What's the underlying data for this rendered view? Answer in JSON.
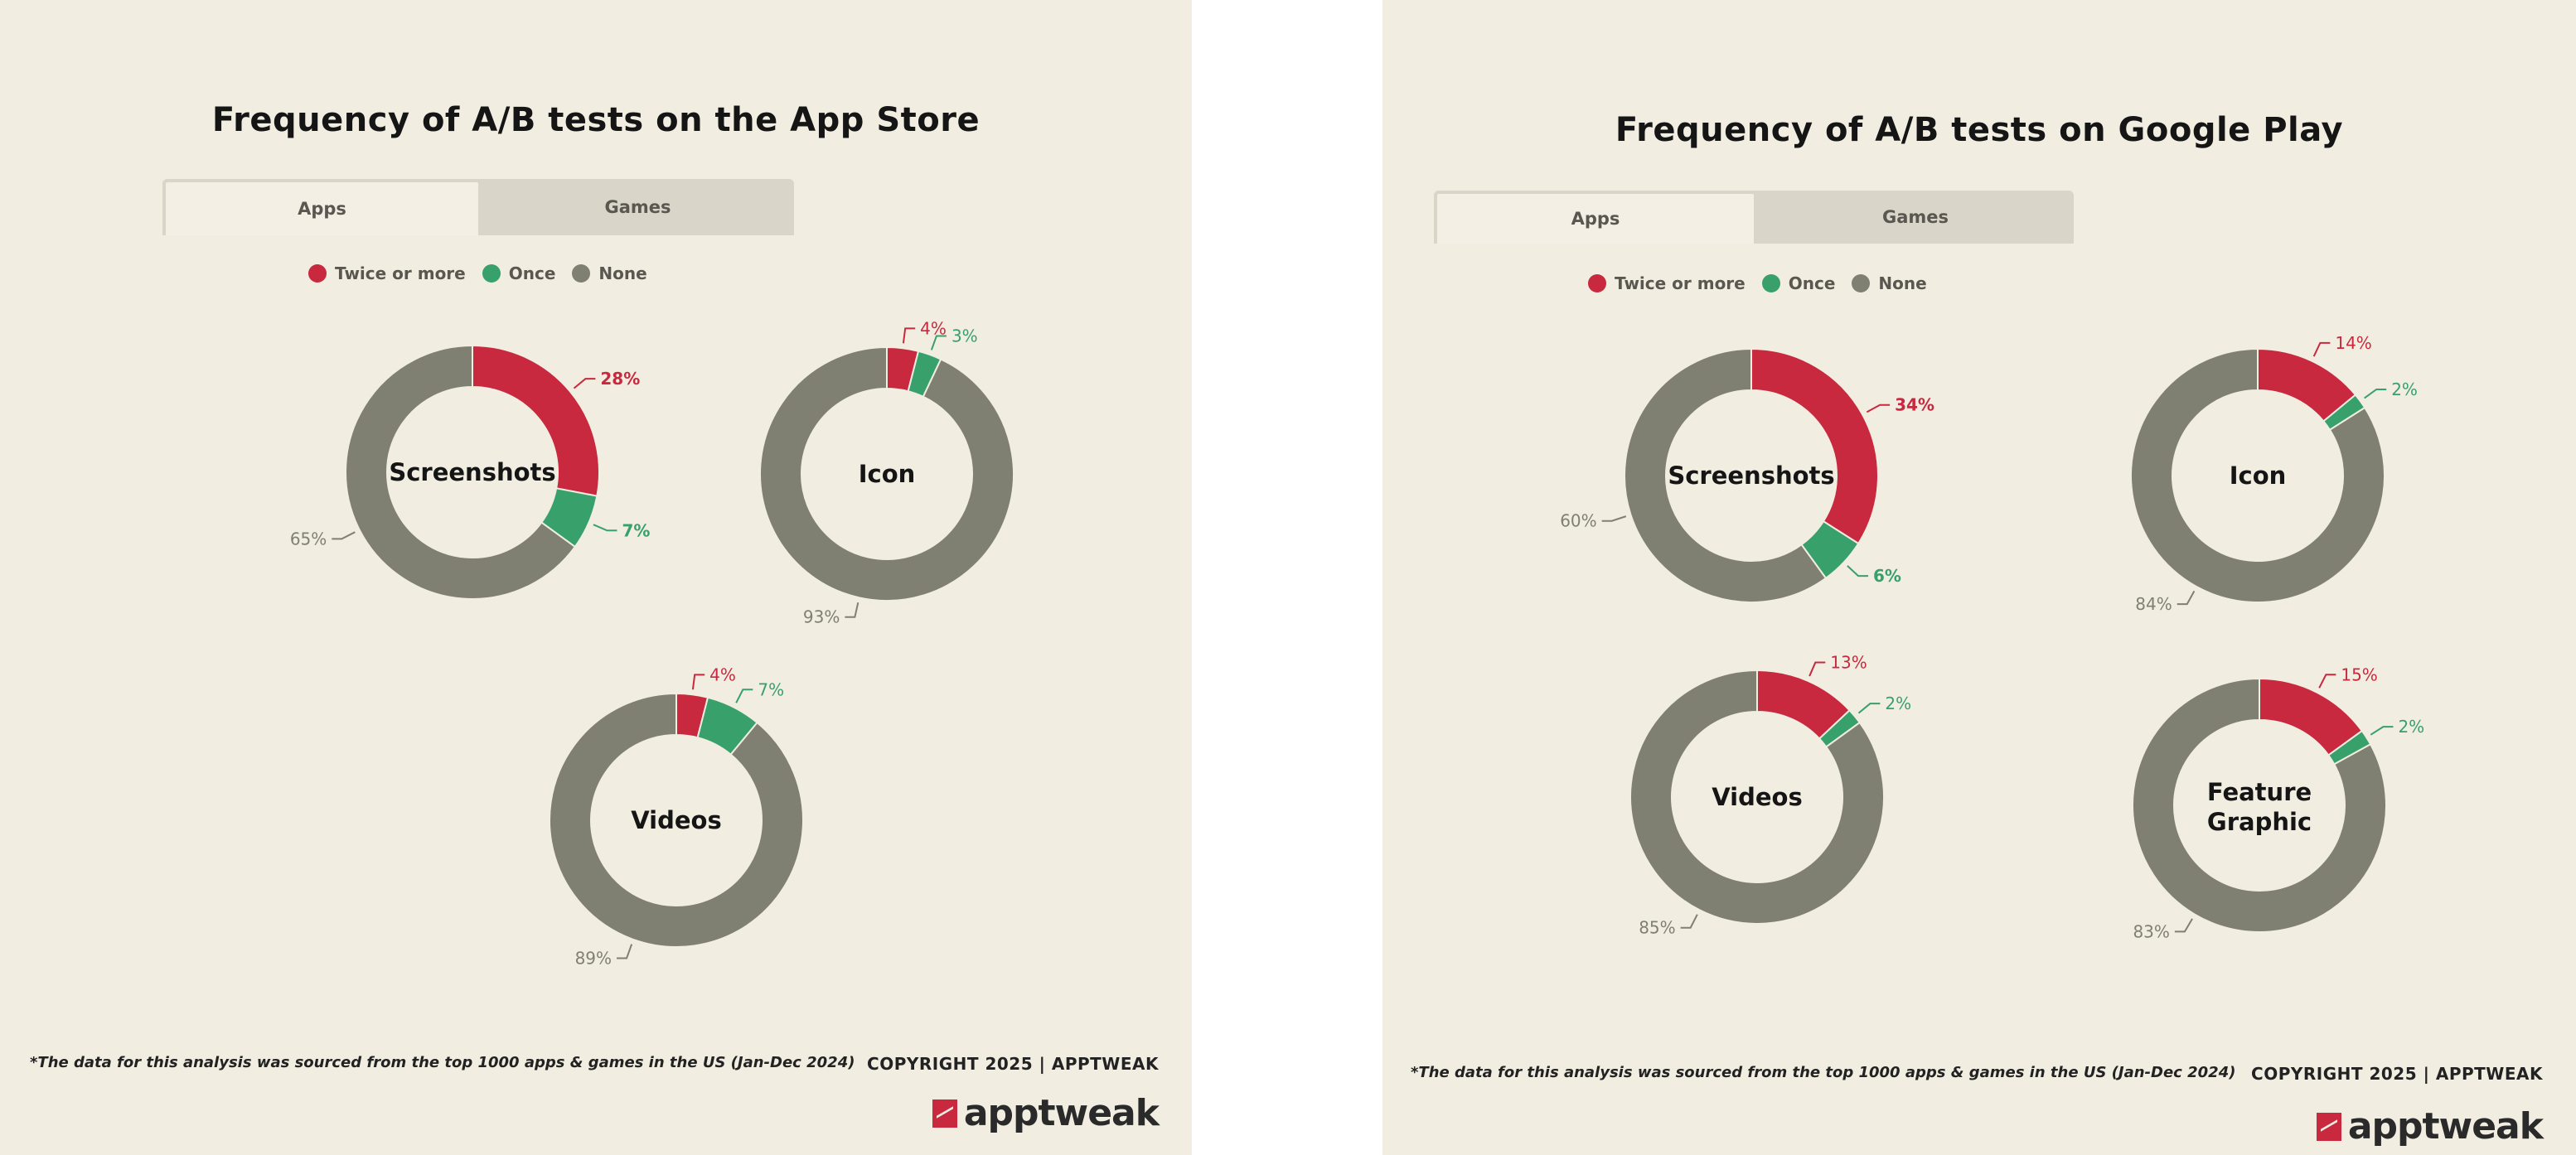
{
  "colors": {
    "twice": "#c8293f",
    "once": "#38a06a",
    "none": "#7f7f72",
    "background": "#f1ede1"
  },
  "legend": [
    "Twice or more",
    "Once",
    "None"
  ],
  "panels": [
    {
      "title": "Frequency of A/B tests on the App Store",
      "tabs": [
        {
          "label": "Apps",
          "active": true
        },
        {
          "label": "Games",
          "active": false
        }
      ],
      "footnote": "*The data for this analysis was sourced from the top 1000 apps & games in the US (Jan-Dec 2024)",
      "copyright": "COPYRIGHT 2025 | APPTWEAK",
      "logo": "apptweak"
    },
    {
      "title": "Frequency of A/B tests on Google Play",
      "tabs": [
        {
          "label": "Apps",
          "active": true
        },
        {
          "label": "Games",
          "active": false
        }
      ],
      "footnote": "*The data for this analysis was sourced from the top 1000 apps & games in the US (Jan-Dec 2024)",
      "copyright": "COPYRIGHT 2025 | APPTWEAK",
      "logo": "apptweak"
    }
  ],
  "chart_data": [
    {
      "type": "pie",
      "title": "Frequency of A/B tests on the App Store",
      "legend_entries": [
        "Twice or more",
        "Once",
        "None"
      ],
      "legend_placement": "top",
      "unit": "%",
      "donuts": [
        {
          "label": "Screenshots",
          "values": [
            28,
            7,
            65
          ]
        },
        {
          "label": "Icon",
          "values": [
            4,
            3,
            93
          ]
        },
        {
          "label": "Videos",
          "values": [
            4,
            7,
            89
          ]
        }
      ]
    },
    {
      "type": "pie",
      "title": "Frequency of A/B tests on Google Play",
      "legend_entries": [
        "Twice or more",
        "Once",
        "None"
      ],
      "legend_placement": "top",
      "unit": "%",
      "donuts": [
        {
          "label": "Screenshots",
          "values": [
            34,
            6,
            60
          ]
        },
        {
          "label": "Icon",
          "values": [
            14,
            2,
            84
          ]
        },
        {
          "label": "Videos",
          "values": [
            13,
            2,
            85
          ]
        },
        {
          "label": "Feature Graphic",
          "values": [
            15,
            2,
            83
          ]
        }
      ]
    }
  ]
}
